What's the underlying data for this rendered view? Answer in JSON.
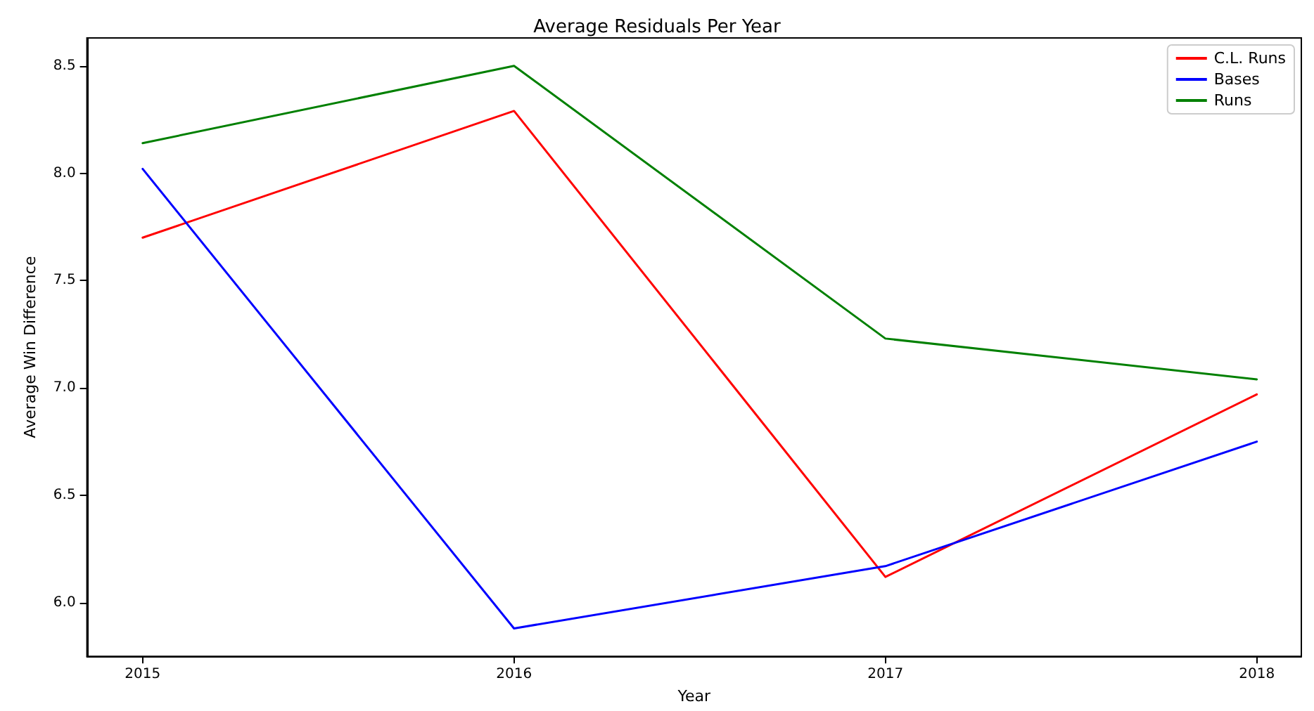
{
  "chart_data": {
    "type": "line",
    "title": "Average Residuals Per Year",
    "xlabel": "Year",
    "ylabel": "Average Win Difference",
    "x": [
      2015,
      2016,
      2017,
      2018
    ],
    "series": [
      {
        "name": "C.L. Runs",
        "color": "#ff0000",
        "values": [
          7.7,
          8.29,
          6.12,
          6.97
        ]
      },
      {
        "name": "Bases",
        "color": "#0000ff",
        "values": [
          8.02,
          5.88,
          6.17,
          6.75
        ]
      },
      {
        "name": "Runs",
        "color": "#008000",
        "values": [
          8.14,
          8.5,
          7.23,
          7.04
        ]
      }
    ],
    "xlim": [
      2014.85,
      2018.12
    ],
    "xticks": [
      2015,
      2016,
      2017,
      2018
    ],
    "ylim": [
      5.75,
      8.63
    ],
    "yticks": [
      {
        "value": 6,
        "label": "6.0"
      },
      6.5,
      {
        "value": 7,
        "label": "7.0"
      },
      7.5,
      {
        "value": 8,
        "label": "8.0"
      },
      8.5
    ],
    "grid": false,
    "legend": "top right",
    "marker": "none",
    "line_style": "solid"
  }
}
